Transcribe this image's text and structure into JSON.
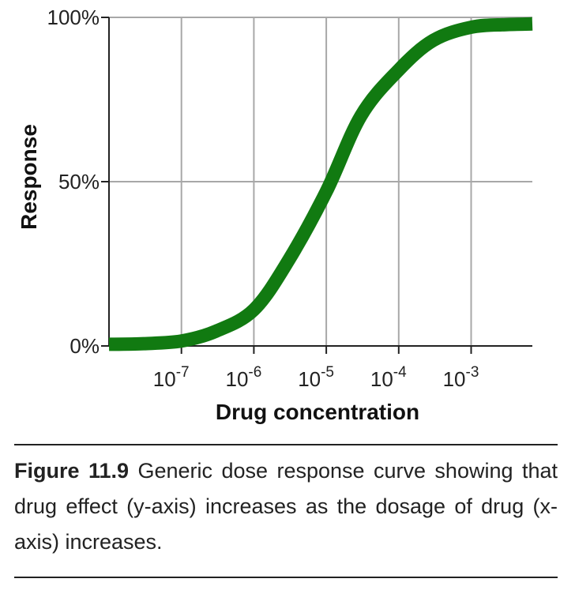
{
  "chart_data": {
    "type": "line",
    "title": "",
    "xlabel": "Drug concentration",
    "ylabel": "Response",
    "x_scale": "log",
    "xlim": [
      1e-08,
      0.007
    ],
    "ylim": [
      0,
      100
    ],
    "x_ticks": [
      {
        "value": 1e-07,
        "base": "10",
        "exp": "-7"
      },
      {
        "value": 1e-06,
        "base": "10",
        "exp": "-6"
      },
      {
        "value": 1e-05,
        "base": "10",
        "exp": "-5"
      },
      {
        "value": 0.0001,
        "base": "10",
        "exp": "-4"
      },
      {
        "value": 0.001,
        "base": "10",
        "exp": "-3"
      }
    ],
    "y_ticks": [
      {
        "value": 0,
        "label": "0%"
      },
      {
        "value": 50,
        "label": "50%"
      },
      {
        "value": 100,
        "label": "100%"
      }
    ],
    "grid": true,
    "series": [
      {
        "color": "#117a11",
        "x": [
          1e-08,
          3e-08,
          1e-07,
          3e-07,
          1e-06,
          3e-06,
          1e-05,
          3e-05,
          0.0001,
          0.0003,
          0.001,
          0.003,
          0.007
        ],
        "y": [
          0.5,
          0.7,
          1.5,
          4.5,
          11,
          26,
          47,
          70,
          84,
          93,
          97,
          97.8,
          98
        ]
      }
    ]
  },
  "caption": {
    "label": "Figure 11.9",
    "text": "Generic dose response curve showing that drug effect (y-axis) increases as the dosage of drug (x-axis) increases."
  }
}
